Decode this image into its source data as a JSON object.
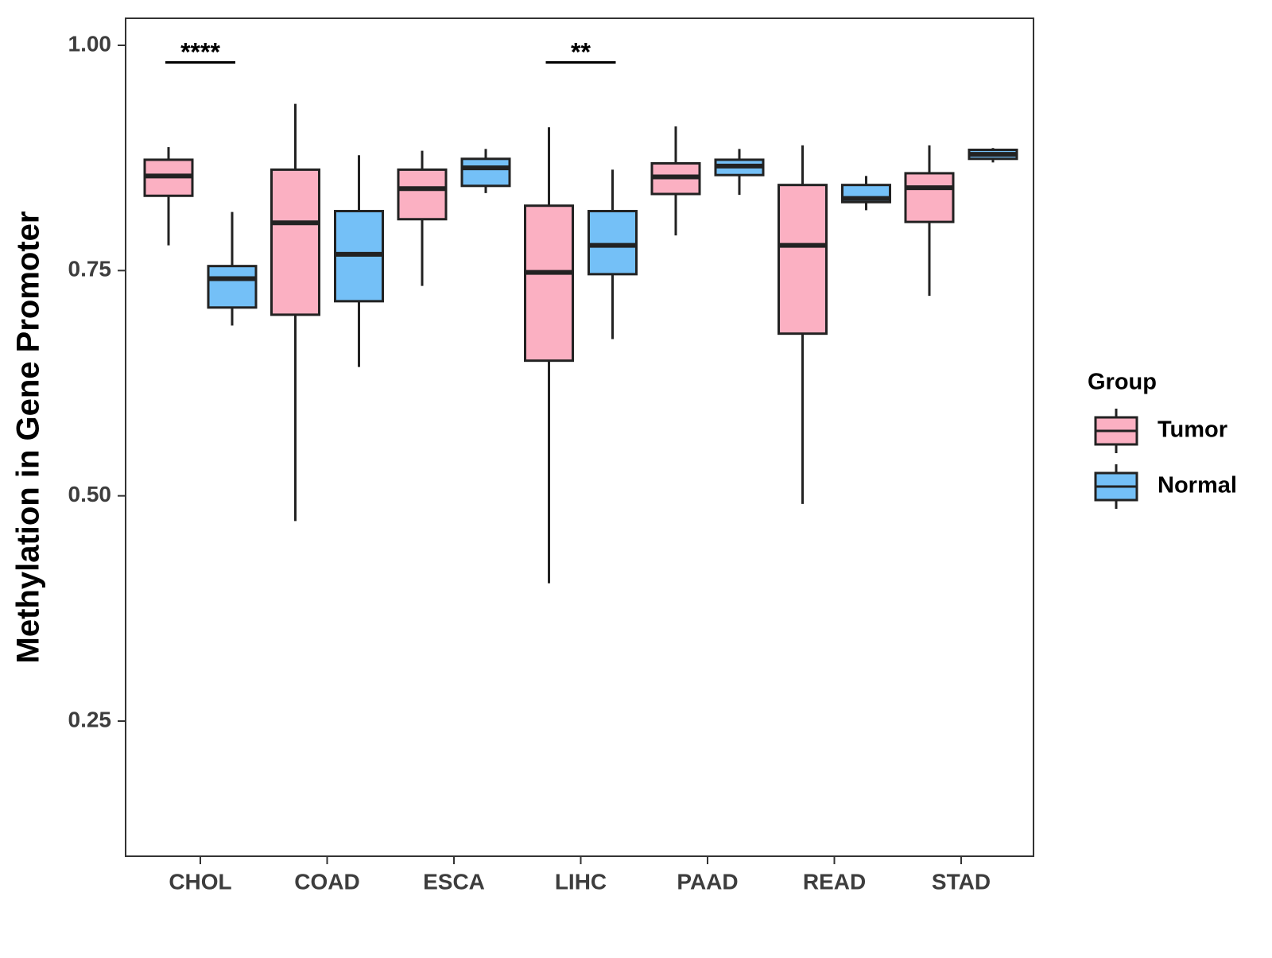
{
  "chart_data": {
    "type": "boxplot",
    "title": "",
    "xlabel": "",
    "ylabel": "Methylation in Gene Promoter",
    "ylim": [
      0.1,
      1.03
    ],
    "yticks": [
      0.25,
      0.5,
      0.75,
      1.0
    ],
    "ytick_labels": [
      "0.25",
      "0.50",
      "0.75",
      "1.00"
    ],
    "categories": [
      "CHOL",
      "COAD",
      "ESCA",
      "LIHC",
      "PAAD",
      "READ",
      "STAD"
    ],
    "legend": {
      "title": "Group",
      "position": "right",
      "entries": [
        {
          "name": "Tumor",
          "color": "#FBB0C2"
        },
        {
          "name": "Normal",
          "color": "#74C0F7"
        }
      ]
    },
    "series": [
      {
        "name": "Tumor",
        "color": "#FBB0C2",
        "boxes": [
          {
            "category": "CHOL",
            "min": 0.778,
            "q1": 0.833,
            "median": 0.855,
            "q3": 0.873,
            "max": 0.887
          },
          {
            "category": "COAD",
            "min": 0.472,
            "q1": 0.701,
            "median": 0.803,
            "q3": 0.862,
            "max": 0.935
          },
          {
            "category": "ESCA",
            "min": 0.733,
            "q1": 0.807,
            "median": 0.841,
            "q3": 0.862,
            "max": 0.883
          },
          {
            "category": "LIHC",
            "min": 0.403,
            "q1": 0.65,
            "median": 0.748,
            "q3": 0.822,
            "max": 0.909
          },
          {
            "category": "PAAD",
            "min": 0.789,
            "q1": 0.835,
            "median": 0.854,
            "q3": 0.869,
            "max": 0.91
          },
          {
            "category": "READ",
            "min": 0.491,
            "q1": 0.68,
            "median": 0.778,
            "q3": 0.845,
            "max": 0.889
          },
          {
            "category": "STAD",
            "min": 0.722,
            "q1": 0.804,
            "median": 0.842,
            "q3": 0.858,
            "max": 0.889
          }
        ]
      },
      {
        "name": "Normal",
        "color": "#74C0F7",
        "boxes": [
          {
            "category": "CHOL",
            "min": 0.689,
            "q1": 0.709,
            "median": 0.741,
            "q3": 0.755,
            "max": 0.815
          },
          {
            "category": "COAD",
            "min": 0.643,
            "q1": 0.716,
            "median": 0.768,
            "q3": 0.816,
            "max": 0.878
          },
          {
            "category": "ESCA",
            "min": 0.836,
            "q1": 0.844,
            "median": 0.864,
            "q3": 0.874,
            "max": 0.885
          },
          {
            "category": "LIHC",
            "min": 0.674,
            "q1": 0.746,
            "median": 0.778,
            "q3": 0.816,
            "max": 0.862
          },
          {
            "category": "PAAD",
            "min": 0.834,
            "q1": 0.856,
            "median": 0.866,
            "q3": 0.873,
            "max": 0.885
          },
          {
            "category": "READ",
            "min": 0.817,
            "q1": 0.826,
            "median": 0.83,
            "q3": 0.845,
            "max": 0.855
          },
          {
            "category": "STAD",
            "min": 0.87,
            "q1": 0.874,
            "median": 0.879,
            "q3": 0.884,
            "max": 0.886
          }
        ]
      }
    ],
    "annotations": [
      {
        "category": "CHOL",
        "label": "****",
        "y": 0.981
      },
      {
        "category": "LIHC",
        "label": "**",
        "y": 0.981
      }
    ]
  }
}
